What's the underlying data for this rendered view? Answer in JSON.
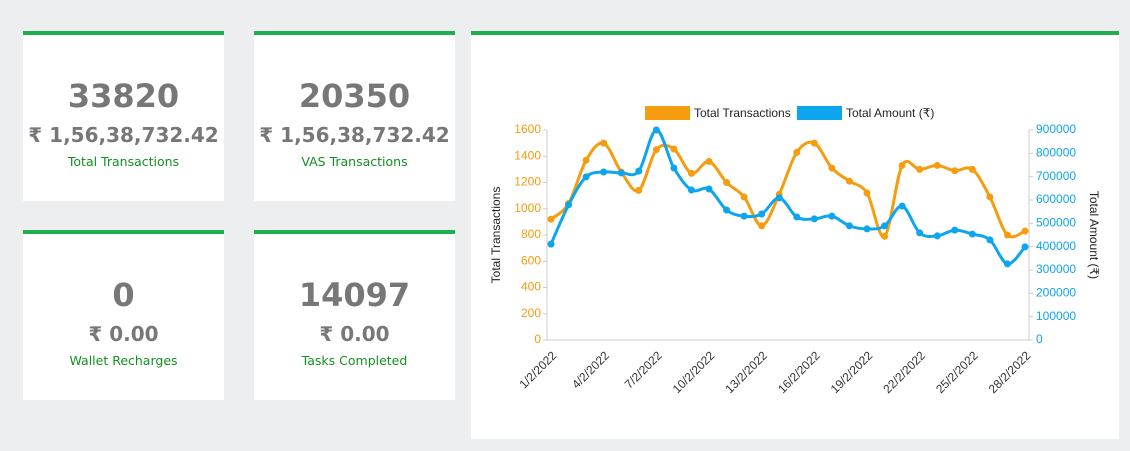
{
  "cards": [
    {
      "value": "33820",
      "amount": "₹ 1,56,38,732.42",
      "label": "Total Transactions"
    },
    {
      "value": "20350",
      "amount": "₹ 1,56,38,732.42",
      "label": "VAS Transactions"
    },
    {
      "value": "0",
      "amount": "₹ 0.00",
      "label": "Wallet Recharges"
    },
    {
      "value": "14097",
      "amount": "₹ 0.00",
      "label": "Tasks Completed"
    }
  ],
  "chart_data": {
    "type": "line",
    "categories": [
      "1/2/2022",
      null,
      null,
      "4/2/2022",
      null,
      null,
      "7/2/2022",
      null,
      null,
      "10/2/2022",
      null,
      null,
      "13/2/2022",
      null,
      null,
      "16/2/2022",
      null,
      null,
      "19/2/2022",
      null,
      null,
      "22/2/2022",
      null,
      null,
      "25/2/2022",
      null,
      null,
      "28/2/2022"
    ],
    "series": [
      {
        "name": "Total Transactions",
        "color": "#f59c0f",
        "values": [
          920,
          1040,
          1370,
          1500,
          1280,
          1140,
          1450,
          1455,
          1270,
          1360,
          1200,
          1090,
          870,
          1110,
          1430,
          1500,
          1310,
          1210,
          1120,
          790,
          1330,
          1300,
          1330,
          1290,
          1300,
          1090,
          800,
          830
        ]
      },
      {
        "name": "Total Amount (₹)",
        "color": "#0ea5ef",
        "axis": "y2",
        "values": [
          411000,
          579000,
          699000,
          720000,
          716000,
          724000,
          900000,
          737000,
          643000,
          647000,
          557000,
          531000,
          540000,
          609000,
          527000,
          519000,
          531000,
          489000,
          476000,
          489000,
          574000,
          459000,
          446000,
          471000,
          454000,
          429000,
          326000,
          399000
        ]
      }
    ],
    "ylabel": "Total Transactions",
    "y2label": "Total Amount (₹)",
    "ylim": [
      0,
      1600
    ],
    "yticks": [
      0,
      200,
      400,
      600,
      800,
      1000,
      1200,
      1400,
      1600
    ],
    "y2lim": [
      0,
      900000
    ],
    "y2ticks": [
      0,
      100000,
      200000,
      300000,
      400000,
      500000,
      600000,
      700000,
      800000,
      900000
    ],
    "legend": "top"
  }
}
